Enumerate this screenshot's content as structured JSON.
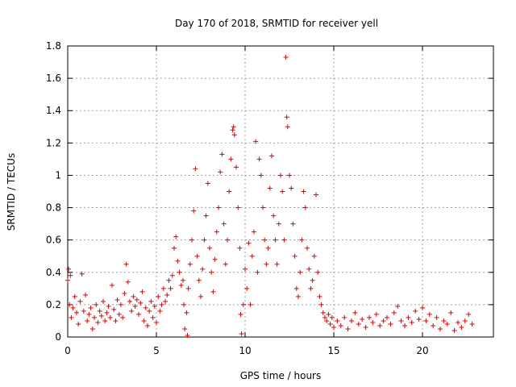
{
  "chart_data": {
    "type": "scatter",
    "title": "Day 170 of 2018, SRMTID for receiver yell",
    "xlabel": "GPS time / hours",
    "ylabel": "SRMTID / TECUs",
    "xlim": [
      0,
      24
    ],
    "ylim": [
      0,
      1.8
    ],
    "x_ticks": [
      0,
      5,
      10,
      15,
      20
    ],
    "x_tick_labels": [
      "0",
      "5",
      "10",
      "15",
      "20"
    ],
    "y_ticks": [
      0,
      0.2,
      0.4,
      0.6,
      0.8,
      1.0,
      1.2,
      1.4,
      1.6,
      1.8
    ],
    "y_tick_labels": [
      "0",
      "0.2",
      "0.4",
      "0.6",
      "0.8",
      "1",
      "1.2",
      "1.4",
      "1.6",
      "1.8"
    ],
    "grid": true,
    "marker": "+",
    "color": "#e00000",
    "series": [
      {
        "name": "SRMTID",
        "points": [
          [
            0.0,
            0.35
          ],
          [
            0.05,
            0.42
          ],
          [
            0.1,
            0.2
          ],
          [
            0.15,
            0.38
          ],
          [
            0.2,
            0.12
          ],
          [
            0.3,
            0.18
          ],
          [
            0.4,
            0.25
          ],
          [
            0.5,
            0.15
          ],
          [
            0.6,
            0.08
          ],
          [
            0.7,
            0.22
          ],
          [
            0.8,
            0.39
          ],
          [
            0.9,
            0.16
          ],
          [
            1.0,
            0.26
          ],
          [
            1.1,
            0.1
          ],
          [
            1.2,
            0.14
          ],
          [
            1.3,
            0.18
          ],
          [
            1.4,
            0.05
          ],
          [
            1.5,
            0.12
          ],
          [
            1.6,
            0.2
          ],
          [
            1.7,
            0.09
          ],
          [
            1.8,
            0.16
          ],
          [
            1.9,
            0.13
          ],
          [
            2.0,
            0.22
          ],
          [
            2.1,
            0.1
          ],
          [
            2.2,
            0.15
          ],
          [
            2.3,
            0.19
          ],
          [
            2.4,
            0.12
          ],
          [
            2.5,
            0.32
          ],
          [
            2.6,
            0.17
          ],
          [
            2.7,
            0.1
          ],
          [
            2.8,
            0.23
          ],
          [
            2.9,
            0.14
          ],
          [
            3.0,
            0.2
          ],
          [
            3.1,
            0.12
          ],
          [
            3.2,
            0.27
          ],
          [
            3.3,
            0.45
          ],
          [
            3.4,
            0.34
          ],
          [
            3.5,
            0.22
          ],
          [
            3.6,
            0.16
          ],
          [
            3.7,
            0.25
          ],
          [
            3.8,
            0.19
          ],
          [
            3.9,
            0.23
          ],
          [
            4.0,
            0.14
          ],
          [
            4.1,
            0.21
          ],
          [
            4.2,
            0.28
          ],
          [
            4.3,
            0.1
          ],
          [
            4.4,
            0.18
          ],
          [
            4.5,
            0.07
          ],
          [
            4.6,
            0.16
          ],
          [
            4.7,
            0.22
          ],
          [
            4.8,
            0.12
          ],
          [
            4.9,
            0.19
          ],
          [
            5.0,
            0.09
          ],
          [
            5.1,
            0.25
          ],
          [
            5.2,
            0.16
          ],
          [
            5.3,
            0.2
          ],
          [
            5.4,
            0.3
          ],
          [
            5.5,
            0.22
          ],
          [
            5.6,
            0.26
          ],
          [
            5.7,
            0.35
          ],
          [
            5.8,
            0.3
          ],
          [
            5.9,
            0.38
          ],
          [
            6.0,
            0.55
          ],
          [
            6.1,
            0.62
          ],
          [
            6.2,
            0.47
          ],
          [
            6.3,
            0.4
          ],
          [
            6.4,
            0.32
          ],
          [
            6.5,
            0.35
          ],
          [
            6.55,
            0.2
          ],
          [
            6.6,
            0.05
          ],
          [
            6.7,
            0.15
          ],
          [
            6.75,
            0.01
          ],
          [
            6.8,
            0.3
          ],
          [
            6.9,
            0.45
          ],
          [
            7.0,
            0.6
          ],
          [
            7.1,
            0.78
          ],
          [
            7.2,
            1.04
          ],
          [
            7.3,
            0.5
          ],
          [
            7.4,
            0.35
          ],
          [
            7.5,
            0.25
          ],
          [
            7.6,
            0.42
          ],
          [
            7.7,
            0.6
          ],
          [
            7.8,
            0.75
          ],
          [
            7.9,
            0.95
          ],
          [
            8.0,
            0.55
          ],
          [
            8.1,
            0.4
          ],
          [
            8.2,
            0.28
          ],
          [
            8.3,
            0.48
          ],
          [
            8.4,
            0.65
          ],
          [
            8.5,
            0.8
          ],
          [
            8.6,
            1.02
          ],
          [
            8.7,
            1.13
          ],
          [
            8.8,
            0.7
          ],
          [
            8.9,
            0.45
          ],
          [
            9.0,
            0.6
          ],
          [
            9.1,
            0.9
          ],
          [
            9.2,
            1.1
          ],
          [
            9.3,
            1.28
          ],
          [
            9.35,
            1.3
          ],
          [
            9.4,
            1.25
          ],
          [
            9.5,
            1.05
          ],
          [
            9.6,
            0.8
          ],
          [
            9.7,
            0.55
          ],
          [
            9.75,
            0.14
          ],
          [
            9.8,
            0.02
          ],
          [
            9.9,
            0.2
          ],
          [
            10.0,
            0.42
          ],
          [
            10.1,
            0.3
          ],
          [
            10.2,
            0.58
          ],
          [
            10.3,
            0.2
          ],
          [
            10.4,
            0.5
          ],
          [
            10.5,
            0.65
          ],
          [
            10.6,
            1.21
          ],
          [
            10.7,
            0.4
          ],
          [
            10.8,
            1.1
          ],
          [
            10.9,
            1.0
          ],
          [
            11.0,
            0.8
          ],
          [
            11.1,
            0.6
          ],
          [
            11.2,
            0.45
          ],
          [
            11.3,
            0.55
          ],
          [
            11.4,
            0.92
          ],
          [
            11.5,
            1.12
          ],
          [
            11.6,
            0.75
          ],
          [
            11.7,
            0.6
          ],
          [
            11.8,
            0.45
          ],
          [
            11.9,
            0.7
          ],
          [
            12.0,
            1.0
          ],
          [
            12.1,
            0.9
          ],
          [
            12.2,
            0.6
          ],
          [
            12.3,
            1.73
          ],
          [
            12.35,
            1.36
          ],
          [
            12.4,
            1.3
          ],
          [
            12.5,
            1.0
          ],
          [
            12.6,
            0.92
          ],
          [
            12.7,
            0.7
          ],
          [
            12.8,
            0.5
          ],
          [
            12.9,
            0.3
          ],
          [
            13.0,
            0.25
          ],
          [
            13.1,
            0.4
          ],
          [
            13.2,
            0.6
          ],
          [
            13.3,
            0.9
          ],
          [
            13.4,
            0.8
          ],
          [
            13.5,
            0.55
          ],
          [
            13.6,
            0.42
          ],
          [
            13.7,
            0.3
          ],
          [
            13.8,
            0.35
          ],
          [
            13.9,
            0.5
          ],
          [
            14.0,
            0.88
          ],
          [
            14.1,
            0.4
          ],
          [
            14.2,
            0.25
          ],
          [
            14.3,
            0.2
          ],
          [
            14.4,
            0.15
          ],
          [
            14.5,
            0.12
          ],
          [
            14.6,
            0.1
          ],
          [
            14.7,
            0.14
          ],
          [
            14.8,
            0.08
          ],
          [
            14.9,
            0.12
          ],
          [
            15.0,
            0.06
          ],
          [
            15.2,
            0.1
          ],
          [
            15.4,
            0.07
          ],
          [
            15.6,
            0.12
          ],
          [
            15.8,
            0.05
          ],
          [
            16.0,
            0.1
          ],
          [
            16.2,
            0.15
          ],
          [
            16.4,
            0.08
          ],
          [
            16.6,
            0.11
          ],
          [
            16.8,
            0.06
          ],
          [
            17.0,
            0.12
          ],
          [
            17.2,
            0.09
          ],
          [
            17.4,
            0.14
          ],
          [
            17.6,
            0.07
          ],
          [
            17.8,
            0.1
          ],
          [
            18.0,
            0.12
          ],
          [
            18.2,
            0.08
          ],
          [
            18.4,
            0.15
          ],
          [
            18.6,
            0.19
          ],
          [
            18.8,
            0.1
          ],
          [
            19.0,
            0.07
          ],
          [
            19.2,
            0.12
          ],
          [
            19.4,
            0.09
          ],
          [
            19.6,
            0.16
          ],
          [
            19.8,
            0.11
          ],
          [
            20.0,
            0.18
          ],
          [
            20.2,
            0.1
          ],
          [
            20.4,
            0.14
          ],
          [
            20.6,
            0.07
          ],
          [
            20.8,
            0.12
          ],
          [
            21.0,
            0.05
          ],
          [
            21.2,
            0.1
          ],
          [
            21.4,
            0.08
          ],
          [
            21.6,
            0.15
          ],
          [
            21.8,
            0.04
          ],
          [
            22.0,
            0.09
          ],
          [
            22.2,
            0.06
          ],
          [
            22.4,
            0.1
          ],
          [
            22.6,
            0.14
          ],
          [
            22.8,
            0.08
          ]
        ]
      }
    ]
  }
}
